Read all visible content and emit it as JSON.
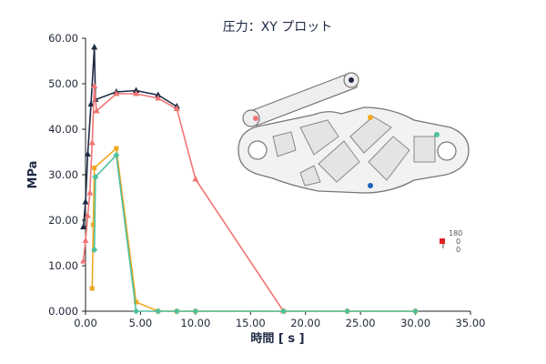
{
  "chart_data": {
    "type": "line",
    "title": "圧力：XY プロット",
    "xlabel": "時間 [ s ]",
    "ylabel": "MPa",
    "xlim": [
      0,
      35
    ],
    "ylim": [
      0,
      60
    ],
    "x_ticks": [
      "0.00",
      "5.00",
      "10.00",
      "15.00",
      "20.00",
      "25.00",
      "30.00",
      "35.00"
    ],
    "y_ticks": [
      "0.000",
      "10.00",
      "20.00",
      "30.00",
      "40.00",
      "50.00",
      "60.00"
    ],
    "grid": false,
    "series": [
      {
        "color": "#1e2a44",
        "marker": "triangle",
        "points": [
          [
            -0.2,
            18.5
          ],
          [
            0.0,
            24.0
          ],
          [
            0.2,
            34.5
          ],
          [
            0.5,
            45.5
          ],
          [
            0.8,
            58.0
          ],
          [
            0.9,
            46.5
          ],
          [
            2.8,
            48.2
          ],
          [
            4.6,
            48.5
          ],
          [
            6.6,
            47.5
          ],
          [
            8.3,
            45.0
          ]
        ]
      },
      {
        "color": "#f07575",
        "marker": "triangle",
        "points": [
          [
            -0.2,
            11.0
          ],
          [
            0.0,
            15.5
          ],
          [
            0.2,
            21.0
          ],
          [
            0.4,
            26.0
          ],
          [
            0.6,
            37.0
          ],
          [
            0.8,
            49.5
          ],
          [
            1.0,
            44.0
          ],
          [
            2.8,
            47.8
          ],
          [
            4.6,
            47.8
          ],
          [
            6.6,
            46.8
          ],
          [
            8.3,
            44.5
          ],
          [
            10.0,
            29.0
          ],
          [
            18.0,
            0.0
          ]
        ]
      },
      {
        "color": "#f0a820",
        "marker": "square",
        "points": [
          [
            0.6,
            5.0
          ],
          [
            0.7,
            19.0
          ],
          [
            0.8,
            31.5
          ],
          [
            2.8,
            35.8
          ],
          [
            4.6,
            2.0
          ],
          [
            6.6,
            0.0
          ],
          [
            8.3,
            0.0
          ],
          [
            10.0,
            0.0
          ],
          [
            18.0,
            0.0
          ],
          [
            23.8,
            0.0
          ],
          [
            30.0,
            0.0
          ]
        ]
      },
      {
        "color": "#4ec0a0",
        "marker": "diamond",
        "points": [
          [
            0.8,
            13.5
          ],
          [
            0.9,
            29.5
          ],
          [
            2.8,
            34.3
          ],
          [
            4.6,
            0.0
          ],
          [
            6.6,
            0.0
          ],
          [
            8.3,
            0.0
          ],
          [
            10.0,
            0.0
          ],
          [
            18.0,
            0.0
          ],
          [
            23.8,
            0.0
          ],
          [
            30.0,
            0.0
          ]
        ]
      }
    ]
  },
  "inset": {
    "probe_colors": [
      "#1e2a44",
      "#f07575",
      "#f0a820",
      "#4ec0a0",
      "#1f5fbf"
    ]
  },
  "triad": {
    "labels": [
      "180",
      "0",
      "0"
    ]
  }
}
